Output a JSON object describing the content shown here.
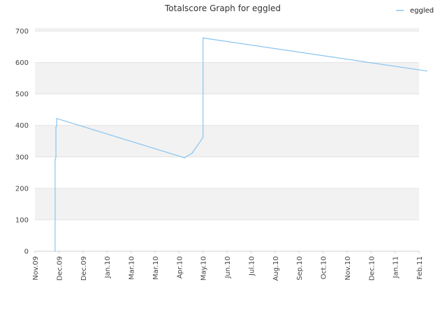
{
  "chart_data": {
    "type": "line",
    "title": "Totalscore Graph for eggled",
    "xlabel": "",
    "ylabel": "",
    "ylim": [
      0,
      710
    ],
    "yticks": [
      0,
      100,
      200,
      300,
      400,
      500,
      600,
      700
    ],
    "x_tick_labels": [
      "Nov.09",
      "Dec.09",
      "Dec.09",
      "Jan.10",
      "Mar.10",
      "Mar.10",
      "Apr.10",
      "May.10",
      "Jun.10",
      "Jul.10",
      "Aug.10",
      "Sep.10",
      "Oct.10",
      "Nov.10",
      "Dec.10",
      "Jan.11",
      "Feb.11"
    ],
    "grid": true,
    "legend_position": "top-right",
    "series": [
      {
        "name": "eggled",
        "color": "#88c4f0",
        "points": [
          [
            "2009-11-25",
            0
          ],
          [
            "2009-11-25",
            290
          ],
          [
            "2009-11-26",
            300
          ],
          [
            "2009-11-26",
            395
          ],
          [
            "2009-11-27",
            400
          ],
          [
            "2009-11-27",
            422
          ],
          [
            "2010-04-28",
            297
          ],
          [
            "2010-05-07",
            312
          ],
          [
            "2010-05-20",
            362
          ],
          [
            "2010-05-20",
            678
          ],
          [
            "2011-02-10",
            573
          ]
        ]
      }
    ]
  }
}
